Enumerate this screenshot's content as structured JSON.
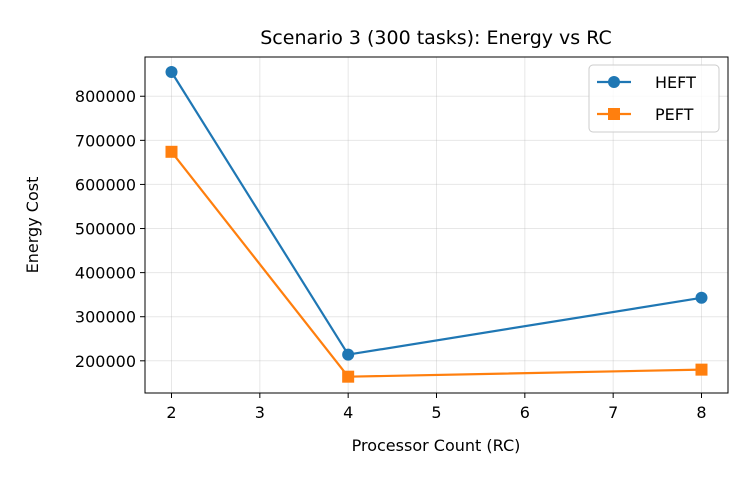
{
  "chart_data": {
    "type": "line",
    "title": "Scenario 3 (300 tasks): Energy vs RC",
    "xlabel": "Processor Count (RC)",
    "ylabel": "Energy Cost",
    "x": [
      2,
      4,
      8
    ],
    "xlim": [
      1.7,
      8.3
    ],
    "ylim": [
      127000,
      889000
    ],
    "xticks": [
      2,
      3,
      4,
      5,
      6,
      7,
      8
    ],
    "yticks": [
      200000,
      300000,
      400000,
      500000,
      600000,
      700000,
      800000
    ],
    "grid": true,
    "legend_position": "top-right",
    "series": [
      {
        "name": "HEFT",
        "values": [
          855000,
          214000,
          343000
        ],
        "color": "#1f77b4",
        "marker": "circle"
      },
      {
        "name": "PEFT",
        "values": [
          674000,
          164000,
          180000
        ],
        "color": "#ff7f0e",
        "marker": "square"
      }
    ]
  }
}
